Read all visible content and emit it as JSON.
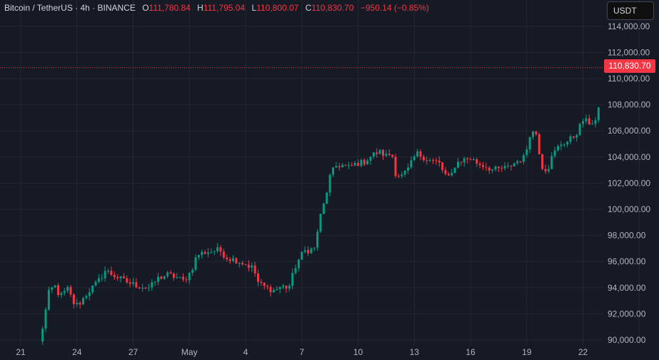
{
  "header": {
    "symbol": "Bitcoin / TetherUS · 4h · BINANCE",
    "o_label": "O",
    "o_value": "111,780.84",
    "h_label": "H",
    "h_value": "111,795.04",
    "l_label": "L",
    "l_value": "110,800.07",
    "c_label": "C",
    "c_value": "110,830.70",
    "change": "−950.14 (−0.85%)"
  },
  "currency_button": "USDT",
  "last_price_label": "110,830.70",
  "colors": {
    "background": "#161a25",
    "grid": "#232733",
    "up": "#089981",
    "down": "#f23645",
    "text": "#b2b5be",
    "price_line": "#f23645"
  },
  "chart_data": {
    "type": "candlestick",
    "ylim": [
      89500,
      115500
    ],
    "y_ticks": [
      90000,
      92000,
      94000,
      96000,
      98000,
      100000,
      102000,
      104000,
      106000,
      108000,
      110000,
      112000,
      114000
    ],
    "y_tick_labels": [
      "90,000.00",
      "92,000.00",
      "94,000.00",
      "96,000.00",
      "98,000.00",
      "100,000.00",
      "102,000.00",
      "104,000.00",
      "106,000.00",
      "108,000.00",
      "110,000.00",
      "112,000.00",
      "114,000.00"
    ],
    "x_ticks": [
      21,
      24,
      27,
      30,
      33,
      36,
      39,
      42,
      45,
      48,
      51,
      54,
      57
    ],
    "x_tick_labels": [
      "21",
      "24",
      "27",
      "May",
      "4",
      "7",
      "10",
      "13",
      "16",
      "19",
      "22"
    ],
    "x_tick_positions": [
      21,
      24,
      27,
      30,
      33,
      36,
      39,
      42,
      45,
      48,
      51
    ],
    "grid": true,
    "last_price": 110830.7,
    "keypoints": [
      [
        22.0,
        89800
      ],
      [
        22.2,
        91200
      ],
      [
        22.5,
        93600
      ],
      [
        22.8,
        94200
      ],
      [
        23.1,
        93300
      ],
      [
        23.5,
        93900
      ],
      [
        23.9,
        92600
      ],
      [
        24.2,
        92900
      ],
      [
        24.6,
        93700
      ],
      [
        25.1,
        94400
      ],
      [
        25.5,
        95300
      ],
      [
        25.9,
        95000
      ],
      [
        26.4,
        94600
      ],
      [
        26.9,
        94300
      ],
      [
        27.4,
        94100
      ],
      [
        27.9,
        94000
      ],
      [
        28.3,
        94700
      ],
      [
        28.8,
        95000
      ],
      [
        29.3,
        94800
      ],
      [
        29.7,
        94500
      ],
      [
        30.1,
        95300
      ],
      [
        30.4,
        96500
      ],
      [
        30.8,
        96700
      ],
      [
        31.2,
        96800
      ],
      [
        31.6,
        96900
      ],
      [
        32.0,
        96300
      ],
      [
        32.5,
        96100
      ],
      [
        33.0,
        95800
      ],
      [
        33.4,
        95500
      ],
      [
        33.7,
        94300
      ],
      [
        34.1,
        94000
      ],
      [
        34.5,
        93800
      ],
      [
        34.9,
        94100
      ],
      [
        35.3,
        94000
      ],
      [
        35.7,
        95800
      ],
      [
        36.1,
        96800
      ],
      [
        36.4,
        96900
      ],
      [
        36.7,
        97000
      ],
      [
        36.9,
        99000
      ],
      [
        37.2,
        100500
      ],
      [
        37.5,
        102500
      ],
      [
        37.8,
        103300
      ],
      [
        38.1,
        103400
      ],
      [
        38.5,
        103200
      ],
      [
        38.9,
        103500
      ],
      [
        39.3,
        103600
      ],
      [
        39.7,
        104100
      ],
      [
        40.1,
        104400
      ],
      [
        40.5,
        104100
      ],
      [
        40.8,
        104300
      ],
      [
        41.0,
        102800
      ],
      [
        41.3,
        102500
      ],
      [
        41.7,
        103100
      ],
      [
        42.1,
        104300
      ],
      [
        42.5,
        104000
      ],
      [
        42.9,
        103700
      ],
      [
        43.3,
        103600
      ],
      [
        43.6,
        102700
      ],
      [
        43.9,
        102300
      ],
      [
        44.2,
        103500
      ],
      [
        44.6,
        103800
      ],
      [
        45.0,
        103900
      ],
      [
        45.4,
        103500
      ],
      [
        45.8,
        103300
      ],
      [
        46.2,
        103000
      ],
      [
        46.6,
        103100
      ],
      [
        47.0,
        103200
      ],
      [
        47.4,
        103600
      ],
      [
        47.9,
        104000
      ],
      [
        48.2,
        106000
      ],
      [
        48.5,
        105800
      ],
      [
        48.8,
        103300
      ],
      [
        49.1,
        103000
      ],
      [
        49.4,
        104200
      ],
      [
        49.8,
        105000
      ],
      [
        50.2,
        105200
      ],
      [
        50.6,
        105700
      ],
      [
        51.0,
        106800
      ],
      [
        51.4,
        106600
      ],
      [
        51.7,
        106800
      ],
      [
        52.0,
        108500
      ],
      [
        52.3,
        109500
      ],
      [
        52.5,
        111000
      ],
      [
        52.6,
        111781
      ],
      [
        52.73,
        110831
      ]
    ],
    "last_candle": {
      "o": 111780.84,
      "h": 111795.04,
      "l": 110800.07,
      "c": 110830.7
    }
  }
}
